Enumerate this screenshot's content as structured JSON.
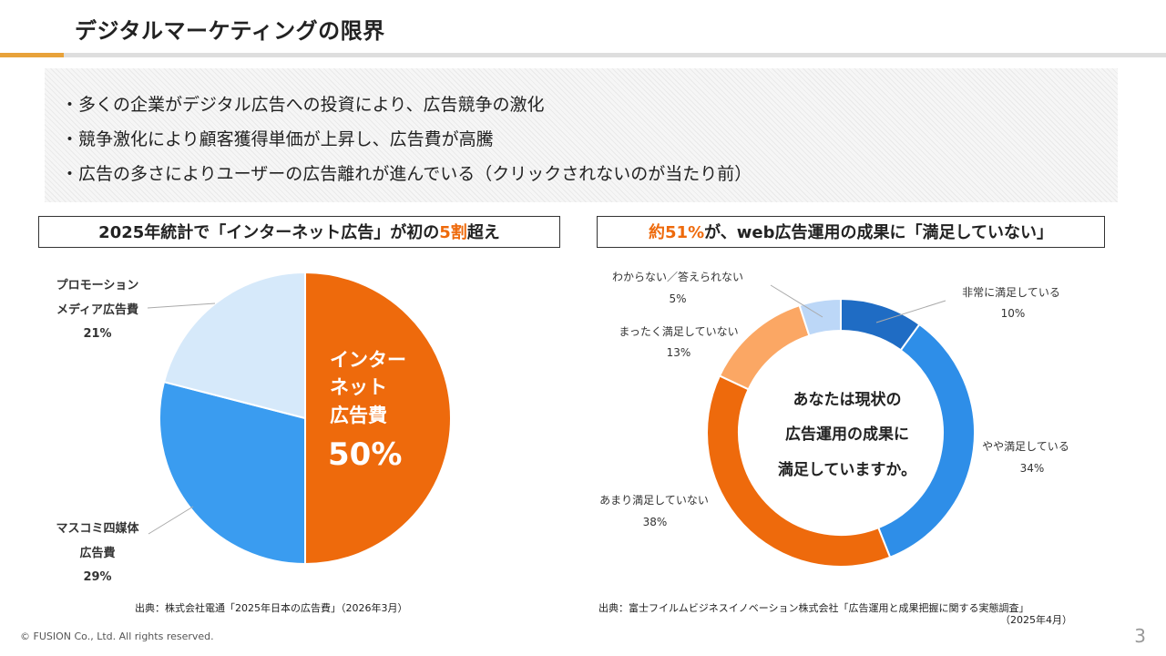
{
  "header": {
    "title": "デジタルマーケティングの限界"
  },
  "bullets": [
    "・多くの企業がデジタル広告への投資により、広告競争の激化",
    "・競争激化により顧客獲得単価が上昇し、広告費が高騰",
    "・広告の多さによりユーザーの広告離れが進んでいる（クリックされないのが当たり前）"
  ],
  "left_panel": {
    "heading_pre": "2025年統計で「インターネット広告」が初の",
    "heading_highlight": "5割",
    "heading_post": "超え",
    "source": "出典：株式会社電通「2025年日本の広告費」（2026年3月）",
    "center_label_lines": [
      "インター",
      "ネット",
      "広告費"
    ],
    "center_value": "50%"
  },
  "right_panel": {
    "heading_highlight": "約51%",
    "heading_post": "が、web広告運用の成果に「満足していない」",
    "center_text_lines": [
      "あなたは現状の",
      "広告運用の成果に",
      "満足していますか。"
    ],
    "source_line1": "出典：富士フイルムビジネスイノベーション株式会社「広告運用と成果把握に関する実態調査」",
    "source_line2": "（2025年4月）"
  },
  "chart_data": [
    {
      "type": "pie",
      "slices": [
        {
          "label": "インターネット広告費",
          "value": 50,
          "value_label": "50%",
          "color": "#ee6a0c"
        },
        {
          "label_lines": [
            "マスコミ四媒体",
            "広告費"
          ],
          "value": 29,
          "value_label": "29%",
          "color": "#3a9cf0"
        },
        {
          "label_lines": [
            "プロモーション",
            "メディア広告費"
          ],
          "value": 21,
          "value_label": "21%",
          "color": "#d6e9fa"
        }
      ]
    },
    {
      "type": "pie",
      "variant": "donut",
      "slices": [
        {
          "label": "非常に満足している",
          "value": 10,
          "value_label": "10%",
          "color": "#1f6cc4"
        },
        {
          "label": "やや満足している",
          "value": 34,
          "value_label": "34%",
          "color": "#2e8ee8"
        },
        {
          "label": "あまり満足していない",
          "value": 38,
          "value_label": "38%",
          "color": "#ee6a0c"
        },
        {
          "label": "まったく満足していない",
          "value": 13,
          "value_label": "13%",
          "color": "#fba764"
        },
        {
          "label": "わからない／答えられない",
          "value": 5,
          "value_label": "5%",
          "color": "#bcd7f7"
        }
      ]
    }
  ],
  "footer": {
    "copyright": "© FUSION Co., Ltd. All rights reserved.",
    "page_number": "3"
  }
}
